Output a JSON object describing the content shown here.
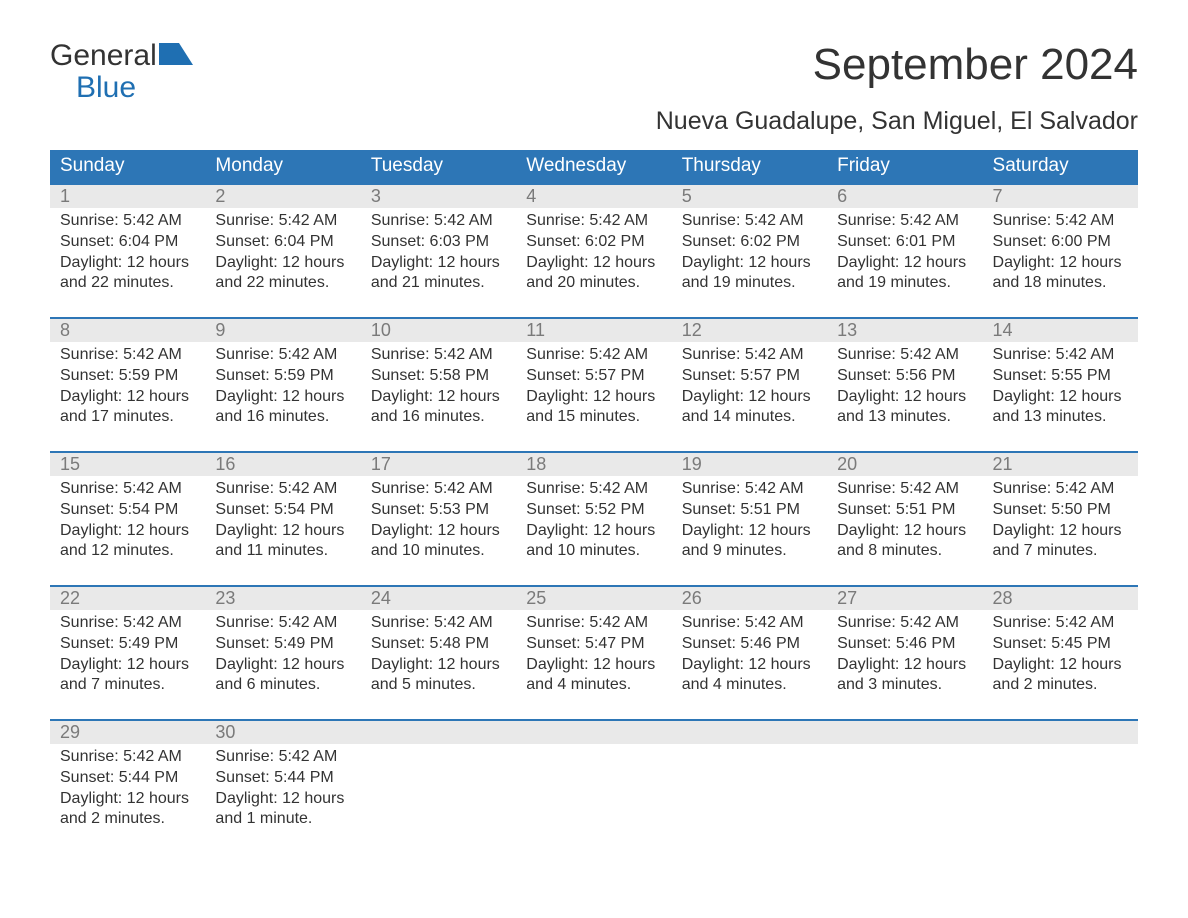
{
  "colors": {
    "brand_blue": "#1f6fb2",
    "header_blue": "#2d76b6",
    "daynum_bg": "#e9e9e9",
    "daynum_color": "#7a7a7a",
    "text": "#333333",
    "logo_icon": "#1f6fb2"
  },
  "logo": {
    "line1": "General",
    "line2": "Blue"
  },
  "title": "September 2024",
  "location": "Nueva Guadalupe, San Miguel, El Salvador",
  "day_headers": [
    "Sunday",
    "Monday",
    "Tuesday",
    "Wednesday",
    "Thursday",
    "Friday",
    "Saturday"
  ],
  "weeks": [
    [
      {
        "n": "1",
        "sr": "Sunrise: 5:42 AM",
        "ss": "Sunset: 6:04 PM",
        "dl": "Daylight: 12 hours and 22 minutes."
      },
      {
        "n": "2",
        "sr": "Sunrise: 5:42 AM",
        "ss": "Sunset: 6:04 PM",
        "dl": "Daylight: 12 hours and 22 minutes."
      },
      {
        "n": "3",
        "sr": "Sunrise: 5:42 AM",
        "ss": "Sunset: 6:03 PM",
        "dl": "Daylight: 12 hours and 21 minutes."
      },
      {
        "n": "4",
        "sr": "Sunrise: 5:42 AM",
        "ss": "Sunset: 6:02 PM",
        "dl": "Daylight: 12 hours and 20 minutes."
      },
      {
        "n": "5",
        "sr": "Sunrise: 5:42 AM",
        "ss": "Sunset: 6:02 PM",
        "dl": "Daylight: 12 hours and 19 minutes."
      },
      {
        "n": "6",
        "sr": "Sunrise: 5:42 AM",
        "ss": "Sunset: 6:01 PM",
        "dl": "Daylight: 12 hours and 19 minutes."
      },
      {
        "n": "7",
        "sr": "Sunrise: 5:42 AM",
        "ss": "Sunset: 6:00 PM",
        "dl": "Daylight: 12 hours and 18 minutes."
      }
    ],
    [
      {
        "n": "8",
        "sr": "Sunrise: 5:42 AM",
        "ss": "Sunset: 5:59 PM",
        "dl": "Daylight: 12 hours and 17 minutes."
      },
      {
        "n": "9",
        "sr": "Sunrise: 5:42 AM",
        "ss": "Sunset: 5:59 PM",
        "dl": "Daylight: 12 hours and 16 minutes."
      },
      {
        "n": "10",
        "sr": "Sunrise: 5:42 AM",
        "ss": "Sunset: 5:58 PM",
        "dl": "Daylight: 12 hours and 16 minutes."
      },
      {
        "n": "11",
        "sr": "Sunrise: 5:42 AM",
        "ss": "Sunset: 5:57 PM",
        "dl": "Daylight: 12 hours and 15 minutes."
      },
      {
        "n": "12",
        "sr": "Sunrise: 5:42 AM",
        "ss": "Sunset: 5:57 PM",
        "dl": "Daylight: 12 hours and 14 minutes."
      },
      {
        "n": "13",
        "sr": "Sunrise: 5:42 AM",
        "ss": "Sunset: 5:56 PM",
        "dl": "Daylight: 12 hours and 13 minutes."
      },
      {
        "n": "14",
        "sr": "Sunrise: 5:42 AM",
        "ss": "Sunset: 5:55 PM",
        "dl": "Daylight: 12 hours and 13 minutes."
      }
    ],
    [
      {
        "n": "15",
        "sr": "Sunrise: 5:42 AM",
        "ss": "Sunset: 5:54 PM",
        "dl": "Daylight: 12 hours and 12 minutes."
      },
      {
        "n": "16",
        "sr": "Sunrise: 5:42 AM",
        "ss": "Sunset: 5:54 PM",
        "dl": "Daylight: 12 hours and 11 minutes."
      },
      {
        "n": "17",
        "sr": "Sunrise: 5:42 AM",
        "ss": "Sunset: 5:53 PM",
        "dl": "Daylight: 12 hours and 10 minutes."
      },
      {
        "n": "18",
        "sr": "Sunrise: 5:42 AM",
        "ss": "Sunset: 5:52 PM",
        "dl": "Daylight: 12 hours and 10 minutes."
      },
      {
        "n": "19",
        "sr": "Sunrise: 5:42 AM",
        "ss": "Sunset: 5:51 PM",
        "dl": "Daylight: 12 hours and 9 minutes."
      },
      {
        "n": "20",
        "sr": "Sunrise: 5:42 AM",
        "ss": "Sunset: 5:51 PM",
        "dl": "Daylight: 12 hours and 8 minutes."
      },
      {
        "n": "21",
        "sr": "Sunrise: 5:42 AM",
        "ss": "Sunset: 5:50 PM",
        "dl": "Daylight: 12 hours and 7 minutes."
      }
    ],
    [
      {
        "n": "22",
        "sr": "Sunrise: 5:42 AM",
        "ss": "Sunset: 5:49 PM",
        "dl": "Daylight: 12 hours and 7 minutes."
      },
      {
        "n": "23",
        "sr": "Sunrise: 5:42 AM",
        "ss": "Sunset: 5:49 PM",
        "dl": "Daylight: 12 hours and 6 minutes."
      },
      {
        "n": "24",
        "sr": "Sunrise: 5:42 AM",
        "ss": "Sunset: 5:48 PM",
        "dl": "Daylight: 12 hours and 5 minutes."
      },
      {
        "n": "25",
        "sr": "Sunrise: 5:42 AM",
        "ss": "Sunset: 5:47 PM",
        "dl": "Daylight: 12 hours and 4 minutes."
      },
      {
        "n": "26",
        "sr": "Sunrise: 5:42 AM",
        "ss": "Sunset: 5:46 PM",
        "dl": "Daylight: 12 hours and 4 minutes."
      },
      {
        "n": "27",
        "sr": "Sunrise: 5:42 AM",
        "ss": "Sunset: 5:46 PM",
        "dl": "Daylight: 12 hours and 3 minutes."
      },
      {
        "n": "28",
        "sr": "Sunrise: 5:42 AM",
        "ss": "Sunset: 5:45 PM",
        "dl": "Daylight: 12 hours and 2 minutes."
      }
    ],
    [
      {
        "n": "29",
        "sr": "Sunrise: 5:42 AM",
        "ss": "Sunset: 5:44 PM",
        "dl": "Daylight: 12 hours and 2 minutes."
      },
      {
        "n": "30",
        "sr": "Sunrise: 5:42 AM",
        "ss": "Sunset: 5:44 PM",
        "dl": "Daylight: 12 hours and 1 minute."
      },
      {
        "empty": true
      },
      {
        "empty": true
      },
      {
        "empty": true
      },
      {
        "empty": true
      },
      {
        "empty": true
      }
    ]
  ]
}
